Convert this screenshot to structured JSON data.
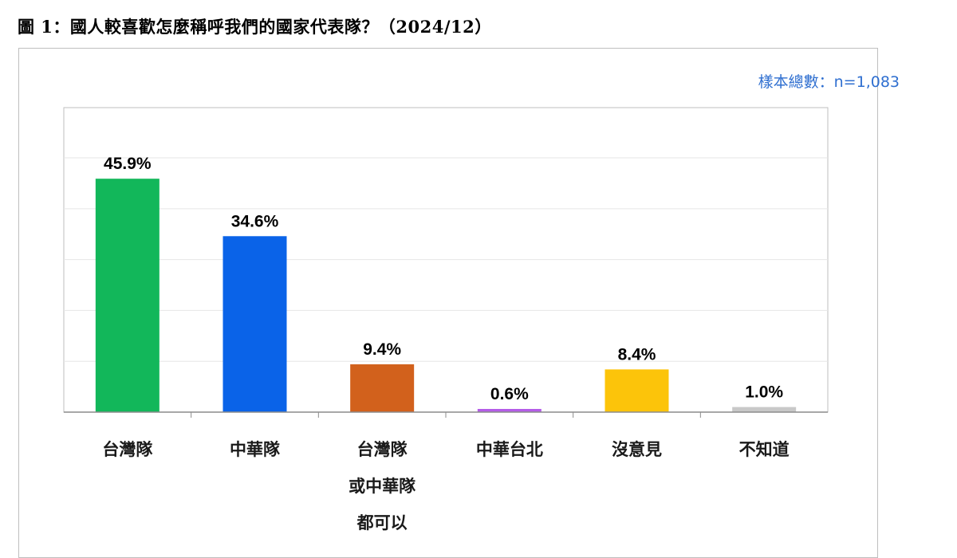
{
  "header": {
    "title": "圖 1：國人較喜歡怎麼稱呼我們的國家代表隊？（2024/12）",
    "sample_note": "樣本總數：n=1,083"
  },
  "chart_data": {
    "type": "bar",
    "categories": [
      [
        "台灣隊"
      ],
      [
        "中華隊"
      ],
      [
        "台灣隊",
        "或中華隊",
        "都可以"
      ],
      [
        "中華台北"
      ],
      [
        "沒意見"
      ],
      [
        "不知道"
      ]
    ],
    "values": [
      45.9,
      34.6,
      9.4,
      0.6,
      8.4,
      1.0
    ],
    "value_labels": [
      "45.9%",
      "34.6%",
      "9.4%",
      "0.6%",
      "8.4%",
      "1.0%"
    ],
    "colors": [
      "#12b75a",
      "#0a63e8",
      "#d2611c",
      "#b45ce8",
      "#fcc40a",
      "#c8c8c8"
    ],
    "ylim": [
      0,
      50
    ],
    "grid": true,
    "legend": "none"
  }
}
